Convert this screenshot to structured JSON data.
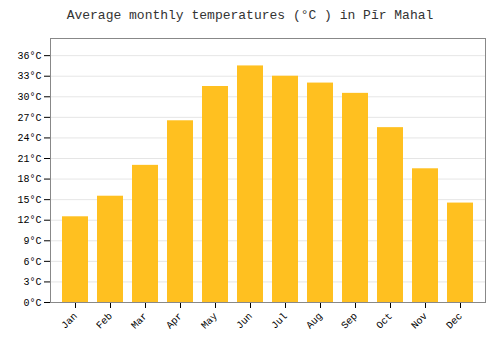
{
  "chart_data": {
    "type": "bar",
    "title": "Average monthly temperatures (°C ) in Pīr Mahal",
    "categories": [
      "Jan",
      "Feb",
      "Mar",
      "Apr",
      "May",
      "Jun",
      "Jul",
      "Aug",
      "Sep",
      "Oct",
      "Nov",
      "Dec"
    ],
    "values": [
      12.5,
      15.5,
      20.0,
      26.5,
      31.5,
      34.5,
      33.0,
      32.0,
      30.5,
      25.5,
      19.5,
      14.5
    ],
    "color": "#FFC020",
    "ylim": [
      0,
      38.5
    ],
    "yticks": [
      {
        "value": 0,
        "label": "0°C"
      },
      {
        "value": 3,
        "label": "3°C"
      },
      {
        "value": 6,
        "label": "6°C"
      },
      {
        "value": 9,
        "label": "9°C"
      },
      {
        "value": 12,
        "label": "12°C"
      },
      {
        "value": 15,
        "label": "15°C"
      },
      {
        "value": 18,
        "label": "18°C"
      },
      {
        "value": 21,
        "label": "21°C"
      },
      {
        "value": 24,
        "label": "24°C"
      },
      {
        "value": 27,
        "label": "27°C"
      },
      {
        "value": 30,
        "label": "30°C"
      },
      {
        "value": 33,
        "label": "33°C"
      },
      {
        "value": 36,
        "label": "36°C"
      }
    ],
    "grid": true
  }
}
